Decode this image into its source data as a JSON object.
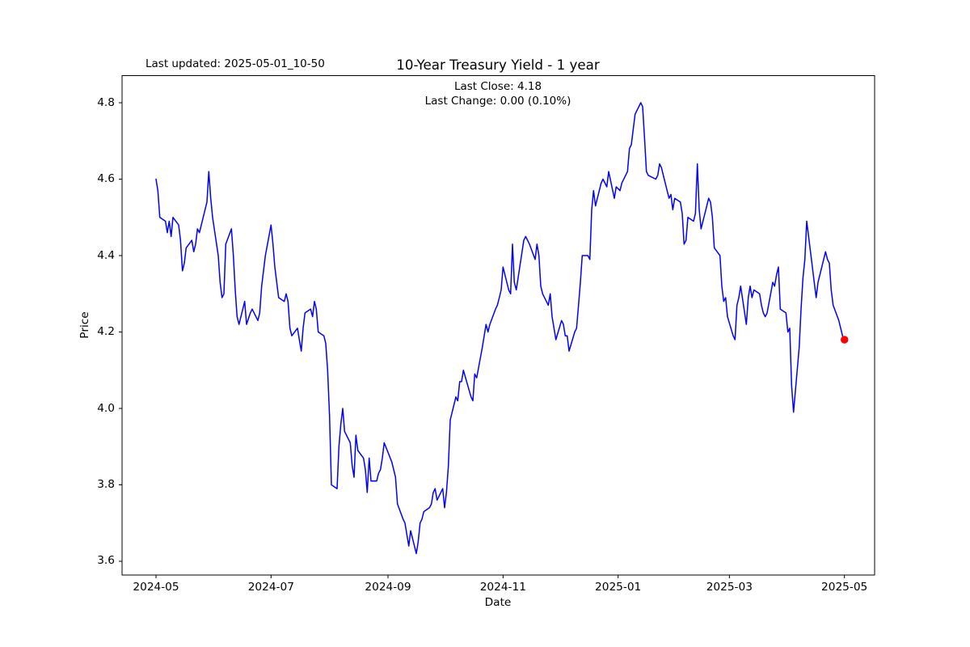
{
  "header": {
    "last_updated": "Last updated: 2025-05-01_10-50",
    "title": "10-Year Treasury Yield - 1 year",
    "last_close": "Last Close: 4.18",
    "last_change": "Last Change: 0.00 (0.10%)"
  },
  "chart_data": {
    "type": "line",
    "title": "10-Year Treasury Yield - 1 year",
    "xlabel": "Date",
    "ylabel": "Price",
    "grid": false,
    "legend": false,
    "colors": {
      "axis": "#000000",
      "background": "#ffffff",
      "line": "#0000ff",
      "marker": "#ff0000"
    },
    "x_axis": {
      "label": "Date",
      "range": [
        "2024-04-13",
        "2025-05-17"
      ],
      "ticks": [
        {
          "date": "2024-05-01",
          "label": "2024-05"
        },
        {
          "date": "2024-07-01",
          "label": "2024-07"
        },
        {
          "date": "2024-09-01",
          "label": "2024-09"
        },
        {
          "date": "2024-11-01",
          "label": "2024-11"
        },
        {
          "date": "2025-01-01",
          "label": "2025-01"
        },
        {
          "date": "2025-03-01",
          "label": "2025-03"
        },
        {
          "date": "2025-05-01",
          "label": "2025-05"
        }
      ]
    },
    "y_axis": {
      "label": "Price",
      "range": [
        3.564,
        4.871
      ],
      "ticks": [
        {
          "value": 3.6,
          "label": "3.6"
        },
        {
          "value": 3.8,
          "label": "3.8"
        },
        {
          "value": 4.0,
          "label": "4.0"
        },
        {
          "value": 4.2,
          "label": "4.2"
        },
        {
          "value": 4.4,
          "label": "4.4"
        },
        {
          "value": 4.6,
          "label": "4.6"
        },
        {
          "value": 4.8,
          "label": "4.8"
        }
      ]
    },
    "annotations": {
      "last_close": 4.18,
      "last_change": "0.00 (0.10%)"
    },
    "series": [
      {
        "name": "10-Year Treasury Yield",
        "color": "#0000ff",
        "line_width": 1.5,
        "marker_color": "#ff0000",
        "marker_radius": 4.7,
        "points": [
          [
            "2024-05-01",
            4.6
          ],
          [
            "2024-05-02",
            4.57
          ],
          [
            "2024-05-03",
            4.5
          ],
          [
            "2024-05-06",
            4.49
          ],
          [
            "2024-05-07",
            4.46
          ],
          [
            "2024-05-08",
            4.49
          ],
          [
            "2024-05-09",
            4.45
          ],
          [
            "2024-05-10",
            4.5
          ],
          [
            "2024-05-13",
            4.48
          ],
          [
            "2024-05-14",
            4.44
          ],
          [
            "2024-05-15",
            4.36
          ],
          [
            "2024-05-16",
            4.38
          ],
          [
            "2024-05-17",
            4.42
          ],
          [
            "2024-05-20",
            4.44
          ],
          [
            "2024-05-21",
            4.41
          ],
          [
            "2024-05-22",
            4.43
          ],
          [
            "2024-05-23",
            4.47
          ],
          [
            "2024-05-24",
            4.46
          ],
          [
            "2024-05-28",
            4.54
          ],
          [
            "2024-05-29",
            4.62
          ],
          [
            "2024-05-30",
            4.55
          ],
          [
            "2024-05-31",
            4.5
          ],
          [
            "2024-06-03",
            4.4
          ],
          [
            "2024-06-04",
            4.33
          ],
          [
            "2024-06-05",
            4.29
          ],
          [
            "2024-06-06",
            4.3
          ],
          [
            "2024-06-07",
            4.43
          ],
          [
            "2024-06-10",
            4.47
          ],
          [
            "2024-06-11",
            4.4
          ],
          [
            "2024-06-12",
            4.31
          ],
          [
            "2024-06-13",
            4.24
          ],
          [
            "2024-06-14",
            4.22
          ],
          [
            "2024-06-17",
            4.28
          ],
          [
            "2024-06-18",
            4.22
          ],
          [
            "2024-06-20",
            4.25
          ],
          [
            "2024-06-21",
            4.26
          ],
          [
            "2024-06-24",
            4.23
          ],
          [
            "2024-06-25",
            4.25
          ],
          [
            "2024-06-26",
            4.32
          ],
          [
            "2024-06-27",
            4.36
          ],
          [
            "2024-06-28",
            4.4
          ],
          [
            "2024-07-01",
            4.48
          ],
          [
            "2024-07-02",
            4.43
          ],
          [
            "2024-07-03",
            4.37
          ],
          [
            "2024-07-05",
            4.29
          ],
          [
            "2024-07-08",
            4.28
          ],
          [
            "2024-07-09",
            4.3
          ],
          [
            "2024-07-10",
            4.28
          ],
          [
            "2024-07-11",
            4.21
          ],
          [
            "2024-07-12",
            4.19
          ],
          [
            "2024-07-15",
            4.21
          ],
          [
            "2024-07-16",
            4.18
          ],
          [
            "2024-07-17",
            4.15
          ],
          [
            "2024-07-18",
            4.21
          ],
          [
            "2024-07-19",
            4.25
          ],
          [
            "2024-07-22",
            4.26
          ],
          [
            "2024-07-23",
            4.24
          ],
          [
            "2024-07-24",
            4.28
          ],
          [
            "2024-07-25",
            4.26
          ],
          [
            "2024-07-26",
            4.2
          ],
          [
            "2024-07-29",
            4.19
          ],
          [
            "2024-07-30",
            4.17
          ],
          [
            "2024-07-31",
            4.1
          ],
          [
            "2024-08-01",
            3.98
          ],
          [
            "2024-08-02",
            3.8
          ],
          [
            "2024-08-05",
            3.79
          ],
          [
            "2024-08-06",
            3.9
          ],
          [
            "2024-08-07",
            3.96
          ],
          [
            "2024-08-08",
            4.0
          ],
          [
            "2024-08-09",
            3.94
          ],
          [
            "2024-08-12",
            3.91
          ],
          [
            "2024-08-13",
            3.85
          ],
          [
            "2024-08-14",
            3.82
          ],
          [
            "2024-08-15",
            3.93
          ],
          [
            "2024-08-16",
            3.89
          ],
          [
            "2024-08-19",
            3.87
          ],
          [
            "2024-08-20",
            3.84
          ],
          [
            "2024-08-21",
            3.78
          ],
          [
            "2024-08-22",
            3.87
          ],
          [
            "2024-08-23",
            3.81
          ],
          [
            "2024-08-26",
            3.81
          ],
          [
            "2024-08-27",
            3.83
          ],
          [
            "2024-08-28",
            3.84
          ],
          [
            "2024-08-29",
            3.87
          ],
          [
            "2024-08-30",
            3.91
          ],
          [
            "2024-09-03",
            3.86
          ],
          [
            "2024-09-04",
            3.84
          ],
          [
            "2024-09-05",
            3.82
          ],
          [
            "2024-09-06",
            3.75
          ],
          [
            "2024-09-09",
            3.71
          ],
          [
            "2024-09-10",
            3.7
          ],
          [
            "2024-09-11",
            3.67
          ],
          [
            "2024-09-12",
            3.64
          ],
          [
            "2024-09-13",
            3.68
          ],
          [
            "2024-09-16",
            3.62
          ],
          [
            "2024-09-17",
            3.65
          ],
          [
            "2024-09-18",
            3.7
          ],
          [
            "2024-09-19",
            3.71
          ],
          [
            "2024-09-20",
            3.73
          ],
          [
            "2024-09-23",
            3.74
          ],
          [
            "2024-09-24",
            3.75
          ],
          [
            "2024-09-25",
            3.78
          ],
          [
            "2024-09-26",
            3.79
          ],
          [
            "2024-09-27",
            3.76
          ],
          [
            "2024-09-30",
            3.79
          ],
          [
            "2024-10-01",
            3.74
          ],
          [
            "2024-10-02",
            3.78
          ],
          [
            "2024-10-03",
            3.85
          ],
          [
            "2024-10-04",
            3.97
          ],
          [
            "2024-10-07",
            4.03
          ],
          [
            "2024-10-08",
            4.02
          ],
          [
            "2024-10-09",
            4.07
          ],
          [
            "2024-10-10",
            4.07
          ],
          [
            "2024-10-11",
            4.1
          ],
          [
            "2024-10-15",
            4.03
          ],
          [
            "2024-10-16",
            4.02
          ],
          [
            "2024-10-17",
            4.09
          ],
          [
            "2024-10-18",
            4.08
          ],
          [
            "2024-10-21",
            4.16
          ],
          [
            "2024-10-22",
            4.19
          ],
          [
            "2024-10-23",
            4.22
          ],
          [
            "2024-10-24",
            4.2
          ],
          [
            "2024-10-25",
            4.22
          ],
          [
            "2024-10-28",
            4.26
          ],
          [
            "2024-10-29",
            4.27
          ],
          [
            "2024-10-30",
            4.29
          ],
          [
            "2024-10-31",
            4.31
          ],
          [
            "2024-11-01",
            4.37
          ],
          [
            "2024-11-04",
            4.31
          ],
          [
            "2024-11-05",
            4.3
          ],
          [
            "2024-11-06",
            4.43
          ],
          [
            "2024-11-07",
            4.33
          ],
          [
            "2024-11-08",
            4.31
          ],
          [
            "2024-11-12",
            4.44
          ],
          [
            "2024-11-13",
            4.45
          ],
          [
            "2024-11-14",
            4.44
          ],
          [
            "2024-11-15",
            4.43
          ],
          [
            "2024-11-18",
            4.39
          ],
          [
            "2024-11-19",
            4.43
          ],
          [
            "2024-11-20",
            4.4
          ],
          [
            "2024-11-21",
            4.32
          ],
          [
            "2024-11-22",
            4.3
          ],
          [
            "2024-11-25",
            4.27
          ],
          [
            "2024-11-26",
            4.3
          ],
          [
            "2024-11-27",
            4.24
          ],
          [
            "2024-11-29",
            4.18
          ],
          [
            "2024-12-02",
            4.23
          ],
          [
            "2024-12-03",
            4.22
          ],
          [
            "2024-12-04",
            4.19
          ],
          [
            "2024-12-05",
            4.19
          ],
          [
            "2024-12-06",
            4.15
          ],
          [
            "2024-12-09",
            4.2
          ],
          [
            "2024-12-10",
            4.21
          ],
          [
            "2024-12-11",
            4.27
          ],
          [
            "2024-12-12",
            4.33
          ],
          [
            "2024-12-13",
            4.4
          ],
          [
            "2024-12-16",
            4.4
          ],
          [
            "2024-12-17",
            4.39
          ],
          [
            "2024-12-18",
            4.52
          ],
          [
            "2024-12-19",
            4.57
          ],
          [
            "2024-12-20",
            4.53
          ],
          [
            "2024-12-23",
            4.59
          ],
          [
            "2024-12-24",
            4.6
          ],
          [
            "2024-12-26",
            4.58
          ],
          [
            "2024-12-27",
            4.62
          ],
          [
            "2024-12-30",
            4.55
          ],
          [
            "2024-12-31",
            4.58
          ],
          [
            "2025-01-02",
            4.57
          ],
          [
            "2025-01-03",
            4.59
          ],
          [
            "2025-01-06",
            4.62
          ],
          [
            "2025-01-07",
            4.68
          ],
          [
            "2025-01-08",
            4.69
          ],
          [
            "2025-01-10",
            4.77
          ],
          [
            "2025-01-13",
            4.8
          ],
          [
            "2025-01-14",
            4.79
          ],
          [
            "2025-01-15",
            4.71
          ],
          [
            "2025-01-16",
            4.62
          ],
          [
            "2025-01-17",
            4.61
          ],
          [
            "2025-01-21",
            4.6
          ],
          [
            "2025-01-22",
            4.61
          ],
          [
            "2025-01-23",
            4.64
          ],
          [
            "2025-01-24",
            4.63
          ],
          [
            "2025-01-27",
            4.57
          ],
          [
            "2025-01-28",
            4.55
          ],
          [
            "2025-01-29",
            4.56
          ],
          [
            "2025-01-30",
            4.52
          ],
          [
            "2025-01-31",
            4.55
          ],
          [
            "2025-02-03",
            4.54
          ],
          [
            "2025-02-04",
            4.51
          ],
          [
            "2025-02-05",
            4.43
          ],
          [
            "2025-02-06",
            4.44
          ],
          [
            "2025-02-07",
            4.5
          ],
          [
            "2025-02-10",
            4.49
          ],
          [
            "2025-02-11",
            4.51
          ],
          [
            "2025-02-12",
            4.64
          ],
          [
            "2025-02-13",
            4.52
          ],
          [
            "2025-02-14",
            4.47
          ],
          [
            "2025-02-18",
            4.55
          ],
          [
            "2025-02-19",
            4.54
          ],
          [
            "2025-02-20",
            4.5
          ],
          [
            "2025-02-21",
            4.42
          ],
          [
            "2025-02-24",
            4.4
          ],
          [
            "2025-02-25",
            4.32
          ],
          [
            "2025-02-26",
            4.28
          ],
          [
            "2025-02-27",
            4.29
          ],
          [
            "2025-02-28",
            4.24
          ],
          [
            "2025-03-03",
            4.19
          ],
          [
            "2025-03-04",
            4.18
          ],
          [
            "2025-03-05",
            4.27
          ],
          [
            "2025-03-06",
            4.29
          ],
          [
            "2025-03-07",
            4.32
          ],
          [
            "2025-03-10",
            4.22
          ],
          [
            "2025-03-11",
            4.29
          ],
          [
            "2025-03-12",
            4.32
          ],
          [
            "2025-03-13",
            4.29
          ],
          [
            "2025-03-14",
            4.31
          ],
          [
            "2025-03-17",
            4.3
          ],
          [
            "2025-03-18",
            4.27
          ],
          [
            "2025-03-19",
            4.25
          ],
          [
            "2025-03-20",
            4.24
          ],
          [
            "2025-03-21",
            4.25
          ],
          [
            "2025-03-24",
            4.33
          ],
          [
            "2025-03-25",
            4.32
          ],
          [
            "2025-03-26",
            4.35
          ],
          [
            "2025-03-27",
            4.37
          ],
          [
            "2025-03-28",
            4.26
          ],
          [
            "2025-03-31",
            4.25
          ],
          [
            "2025-04-01",
            4.2
          ],
          [
            "2025-04-02",
            4.21
          ],
          [
            "2025-04-03",
            4.06
          ],
          [
            "2025-04-04",
            3.99
          ],
          [
            "2025-04-07",
            4.16
          ],
          [
            "2025-04-08",
            4.26
          ],
          [
            "2025-04-09",
            4.34
          ],
          [
            "2025-04-10",
            4.39
          ],
          [
            "2025-04-11",
            4.49
          ],
          [
            "2025-04-14",
            4.37
          ],
          [
            "2025-04-15",
            4.33
          ],
          [
            "2025-04-16",
            4.29
          ],
          [
            "2025-04-17",
            4.33
          ],
          [
            "2025-04-21",
            4.41
          ],
          [
            "2025-04-22",
            4.39
          ],
          [
            "2025-04-23",
            4.38
          ],
          [
            "2025-04-24",
            4.31
          ],
          [
            "2025-04-25",
            4.27
          ],
          [
            "2025-04-28",
            4.23
          ],
          [
            "2025-04-29",
            4.21
          ],
          [
            "2025-04-30",
            4.19
          ],
          [
            "2025-05-01",
            4.18
          ]
        ]
      }
    ]
  }
}
